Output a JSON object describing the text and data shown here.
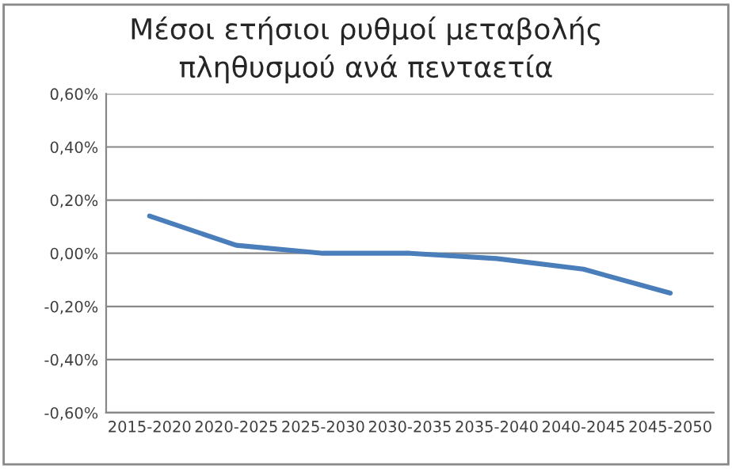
{
  "chart_data": {
    "type": "line",
    "title": "Μέσοι ετήσιοι ρυθμοί μεταβολής\nπληθυσμού ανά πενταετία",
    "categories": [
      "2015-2020",
      "2020-2025",
      "2025-2030",
      "2030-2035",
      "2035-2040",
      "2040-2045",
      "2045-2050"
    ],
    "series": [
      {
        "color": "#4a7ebb",
        "values": [
          0.14,
          0.03,
          0.0,
          0.0,
          -0.02,
          -0.06,
          -0.15
        ]
      }
    ],
    "ylim": [
      -0.6,
      0.6
    ],
    "yticks": [
      {
        "value": -0.6,
        "label": "-0,60%"
      },
      {
        "value": -0.4,
        "label": "-0,40%"
      },
      {
        "value": -0.2,
        "label": "-0,20%"
      },
      {
        "value": 0,
        "label": "0,00%"
      },
      {
        "value": 0.2,
        "label": "0,20%"
      },
      {
        "value": 0.4,
        "label": "0,40%"
      },
      {
        "value": 0.6,
        "label": "0,60%"
      }
    ],
    "grid": "y",
    "legend": false,
    "marker": "none",
    "line_style": "solid"
  }
}
